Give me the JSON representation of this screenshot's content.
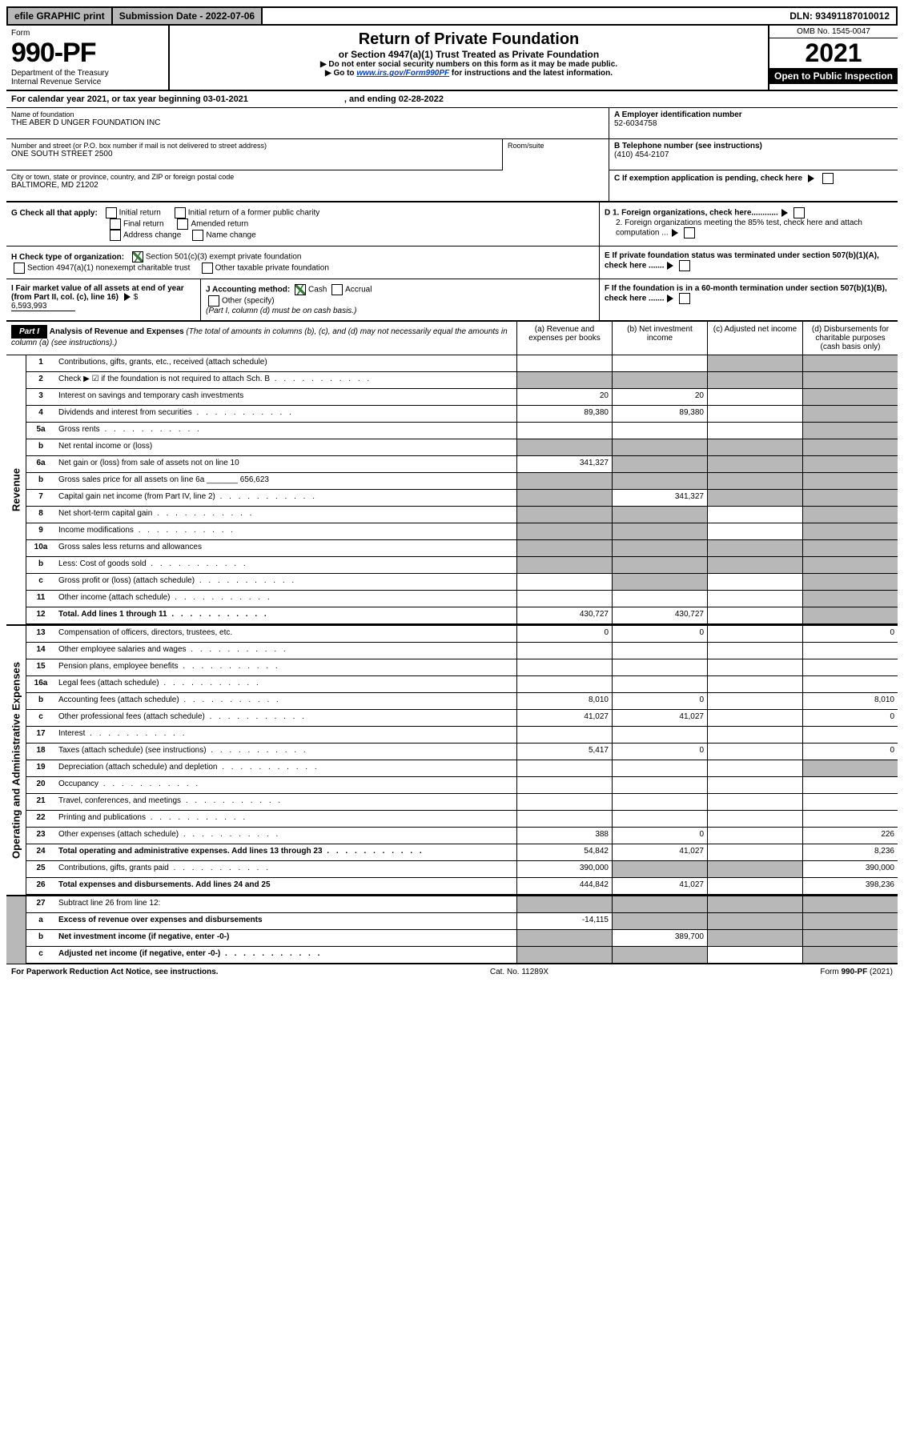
{
  "top_bar": {
    "efile": "efile GRAPHIC print",
    "sub_date": "Submission Date - 2022-07-06",
    "dln": "DLN: 93491187010012"
  },
  "header": {
    "form_label": "Form",
    "form_num": "990-PF",
    "dept": "Department of the Treasury",
    "irs": "Internal Revenue Service",
    "title": "Return of Private Foundation",
    "subtitle": "or Section 4947(a)(1) Trust Treated as Private Foundation",
    "inst1": "▶ Do not enter social security numbers on this form as it may be made public.",
    "inst2_pre": "▶ Go to ",
    "inst2_link": "www.irs.gov/Form990PF",
    "inst2_post": " for instructions and the latest information.",
    "omb": "OMB No. 1545-0047",
    "year": "2021",
    "open": "Open to Public Inspection"
  },
  "cal_year": {
    "text": "For calendar year 2021, or tax year beginning 03-01-2021",
    "ending": ", and ending 02-28-2022"
  },
  "foundation": {
    "name_label": "Name of foundation",
    "name": "THE ABER D UNGER FOUNDATION INC",
    "addr_label": "Number and street (or P.O. box number if mail is not delivered to street address)",
    "addr": "ONE SOUTH STREET 2500",
    "room_label": "Room/suite",
    "city_label": "City or town, state or province, country, and ZIP or foreign postal code",
    "city": "BALTIMORE, MD  21202",
    "ein_label": "A Employer identification number",
    "ein": "52-6034758",
    "phone_label": "B Telephone number (see instructions)",
    "phone": "(410) 454-2107",
    "c_label": "C If exemption application is pending, check here"
  },
  "checks": {
    "g_label": "G Check all that apply:",
    "g_opts": [
      "Initial return",
      "Initial return of a former public charity",
      "Final return",
      "Amended return",
      "Address change",
      "Name change"
    ],
    "h_label": "H Check type of organization:",
    "h1": "Section 501(c)(3) exempt private foundation",
    "h2": "Section 4947(a)(1) nonexempt charitable trust",
    "h3": "Other taxable private foundation",
    "i_label": "I Fair market value of all assets at end of year (from Part II, col. (c), line 16)",
    "i_val": "6,593,993",
    "j_label": "J Accounting method:",
    "j_cash": "Cash",
    "j_accrual": "Accrual",
    "j_other": "Other (specify)",
    "j_note": "(Part I, column (d) must be on cash basis.)",
    "d1": "D 1. Foreign organizations, check here............",
    "d2": "2. Foreign organizations meeting the 85% test, check here and attach computation ...",
    "e": "E If private foundation status was terminated under section 507(b)(1)(A), check here .......",
    "f": "F If the foundation is in a 60-month termination under section 507(b)(1)(B), check here ......."
  },
  "part1": {
    "label": "Part I",
    "title": "Analysis of Revenue and Expenses",
    "note": "(The total of amounts in columns (b), (c), and (d) may not necessarily equal the amounts in column (a) (see instructions).)",
    "col_a": "(a) Revenue and expenses per books",
    "col_b": "(b) Net investment income",
    "col_c": "(c) Adjusted net income",
    "col_d": "(d) Disbursements for charitable purposes (cash basis only)"
  },
  "sections": {
    "revenue": "Revenue",
    "expenses": "Operating and Administrative Expenses"
  },
  "rows": [
    {
      "n": "1",
      "d": "Contributions, gifts, grants, etc., received (attach schedule)",
      "a": "",
      "b": "",
      "c": "grey",
      "dd": "grey"
    },
    {
      "n": "2",
      "d": "Check ▶ ☑ if the foundation is not required to attach Sch. B",
      "dots": true,
      "a": "grey",
      "b": "grey",
      "c": "grey",
      "dd": "grey"
    },
    {
      "n": "3",
      "d": "Interest on savings and temporary cash investments",
      "a": "20",
      "b": "20",
      "c": "",
      "dd": "grey"
    },
    {
      "n": "4",
      "d": "Dividends and interest from securities",
      "dots": true,
      "a": "89,380",
      "b": "89,380",
      "c": "",
      "dd": "grey"
    },
    {
      "n": "5a",
      "d": "Gross rents",
      "dots": true,
      "a": "",
      "b": "",
      "c": "",
      "dd": "grey"
    },
    {
      "n": "b",
      "d": "Net rental income or (loss)",
      "a": "grey",
      "b": "grey",
      "c": "grey",
      "dd": "grey"
    },
    {
      "n": "6a",
      "d": "Net gain or (loss) from sale of assets not on line 10",
      "a": "341,327",
      "b": "grey",
      "c": "grey",
      "dd": "grey"
    },
    {
      "n": "b",
      "d": "Gross sales price for all assets on line 6a _______ 656,623",
      "a": "grey",
      "b": "grey",
      "c": "grey",
      "dd": "grey"
    },
    {
      "n": "7",
      "d": "Capital gain net income (from Part IV, line 2)",
      "dots": true,
      "a": "grey",
      "b": "341,327",
      "c": "grey",
      "dd": "grey"
    },
    {
      "n": "8",
      "d": "Net short-term capital gain",
      "dots": true,
      "a": "grey",
      "b": "grey",
      "c": "",
      "dd": "grey"
    },
    {
      "n": "9",
      "d": "Income modifications",
      "dots": true,
      "a": "grey",
      "b": "grey",
      "c": "",
      "dd": "grey"
    },
    {
      "n": "10a",
      "d": "Gross sales less returns and allowances",
      "a": "grey",
      "b": "grey",
      "c": "grey",
      "dd": "grey"
    },
    {
      "n": "b",
      "d": "Less: Cost of goods sold",
      "dots": true,
      "a": "grey",
      "b": "grey",
      "c": "grey",
      "dd": "grey"
    },
    {
      "n": "c",
      "d": "Gross profit or (loss) (attach schedule)",
      "dots": true,
      "a": "",
      "b": "grey",
      "c": "",
      "dd": "grey"
    },
    {
      "n": "11",
      "d": "Other income (attach schedule)",
      "dots": true,
      "a": "",
      "b": "",
      "c": "",
      "dd": "grey"
    },
    {
      "n": "12",
      "d": "Total. Add lines 1 through 11",
      "dots": true,
      "bold": true,
      "a": "430,727",
      "b": "430,727",
      "c": "",
      "dd": "grey"
    }
  ],
  "exp_rows": [
    {
      "n": "13",
      "d": "Compensation of officers, directors, trustees, etc.",
      "a": "0",
      "b": "0",
      "c": "",
      "dd": "0"
    },
    {
      "n": "14",
      "d": "Other employee salaries and wages",
      "dots": true,
      "a": "",
      "b": "",
      "c": "",
      "dd": ""
    },
    {
      "n": "15",
      "d": "Pension plans, employee benefits",
      "dots": true,
      "a": "",
      "b": "",
      "c": "",
      "dd": ""
    },
    {
      "n": "16a",
      "d": "Legal fees (attach schedule)",
      "dots": true,
      "a": "",
      "b": "",
      "c": "",
      "dd": ""
    },
    {
      "n": "b",
      "d": "Accounting fees (attach schedule)",
      "dots": true,
      "a": "8,010",
      "b": "0",
      "c": "",
      "dd": "8,010"
    },
    {
      "n": "c",
      "d": "Other professional fees (attach schedule)",
      "dots": true,
      "a": "41,027",
      "b": "41,027",
      "c": "",
      "dd": "0"
    },
    {
      "n": "17",
      "d": "Interest",
      "dots": true,
      "a": "",
      "b": "",
      "c": "",
      "dd": ""
    },
    {
      "n": "18",
      "d": "Taxes (attach schedule) (see instructions)",
      "dots": true,
      "a": "5,417",
      "b": "0",
      "c": "",
      "dd": "0"
    },
    {
      "n": "19",
      "d": "Depreciation (attach schedule) and depletion",
      "dots": true,
      "a": "",
      "b": "",
      "c": "",
      "dd": "grey"
    },
    {
      "n": "20",
      "d": "Occupancy",
      "dots": true,
      "a": "",
      "b": "",
      "c": "",
      "dd": ""
    },
    {
      "n": "21",
      "d": "Travel, conferences, and meetings",
      "dots": true,
      "a": "",
      "b": "",
      "c": "",
      "dd": ""
    },
    {
      "n": "22",
      "d": "Printing and publications",
      "dots": true,
      "a": "",
      "b": "",
      "c": "",
      "dd": ""
    },
    {
      "n": "23",
      "d": "Other expenses (attach schedule)",
      "dots": true,
      "a": "388",
      "b": "0",
      "c": "",
      "dd": "226"
    },
    {
      "n": "24",
      "d": "Total operating and administrative expenses. Add lines 13 through 23",
      "dots": true,
      "bold": true,
      "a": "54,842",
      "b": "41,027",
      "c": "",
      "dd": "8,236"
    },
    {
      "n": "25",
      "d": "Contributions, gifts, grants paid",
      "dots": true,
      "a": "390,000",
      "b": "grey",
      "c": "grey",
      "dd": "390,000"
    },
    {
      "n": "26",
      "d": "Total expenses and disbursements. Add lines 24 and 25",
      "bold": true,
      "a": "444,842",
      "b": "41,027",
      "c": "",
      "dd": "398,236"
    }
  ],
  "final_rows": [
    {
      "n": "27",
      "d": "Subtract line 26 from line 12:",
      "a": "grey",
      "b": "grey",
      "c": "grey",
      "dd": "grey"
    },
    {
      "n": "a",
      "d": "Excess of revenue over expenses and disbursements",
      "bold": true,
      "a": "-14,115",
      "b": "grey",
      "c": "grey",
      "dd": "grey"
    },
    {
      "n": "b",
      "d": "Net investment income (if negative, enter -0-)",
      "bold": true,
      "a": "grey",
      "b": "389,700",
      "c": "grey",
      "dd": "grey"
    },
    {
      "n": "c",
      "d": "Adjusted net income (if negative, enter -0-)",
      "bold": true,
      "dots": true,
      "a": "grey",
      "b": "grey",
      "c": "",
      "dd": "grey"
    }
  ],
  "footer": {
    "left": "For Paperwork Reduction Act Notice, see instructions.",
    "center": "Cat. No. 11289X",
    "right": "Form 990-PF (2021)"
  }
}
